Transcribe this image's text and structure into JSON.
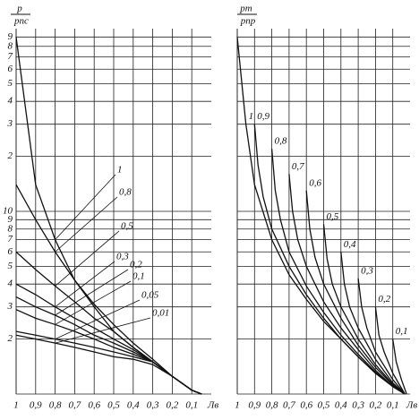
{
  "chart_data": [
    {
      "type": "line",
      "y_label": {
        "num": "p",
        "den": "pпс"
      },
      "x_label": "Лв",
      "xlim": [
        1,
        0
      ],
      "xticks": [
        1,
        {
          "value": 0.9,
          "label": "0,9"
        },
        {
          "value": 0.8,
          "label": "0,8"
        },
        {
          "value": 0.7,
          "label": "0,7"
        },
        {
          "value": 0.6,
          "label": "0,6"
        },
        {
          "value": 0.5,
          "label": "0,5"
        },
        {
          "value": 0.4,
          "label": "0,4"
        },
        {
          "value": 0.3,
          "label": "0,3"
        },
        {
          "value": 0.2,
          "label": "0,2"
        },
        {
          "value": 0.1,
          "label": "0,1"
        }
      ],
      "ylim": [
        1,
        100
      ],
      "log_y": true,
      "show_ytick_labels": true,
      "yticks": [
        2,
        3,
        4,
        5,
        6,
        7,
        8,
        9,
        10,
        {
          "value": 20,
          "label": "2"
        },
        {
          "value": 30,
          "label": "3"
        },
        {
          "value": 40,
          "label": "4"
        },
        {
          "value": 50,
          "label": "5"
        },
        {
          "value": 60,
          "label": "6"
        },
        {
          "value": 70,
          "label": "7"
        },
        {
          "value": 80,
          "label": "8"
        },
        {
          "value": 90,
          "label": "9"
        }
      ],
      "x": [
        1,
        0.9,
        0.8,
        0.7,
        0.6,
        0.5,
        0.4,
        0.3,
        0.2,
        0.1,
        0.05
      ],
      "color": "#111111",
      "series": [
        {
          "name": "1",
          "values": [
            90,
            14,
            7,
            4.2,
            3,
            2.2,
            1.8,
            1.5,
            1.25,
            1.05,
            1
          ]
        },
        {
          "name": "0,8",
          "values": [
            14,
            9,
            6,
            4.2,
            3.1,
            2.4,
            1.9,
            1.55,
            1.25,
            1.05,
            1
          ]
        },
        {
          "name": "0,5",
          "values": [
            6,
            4.8,
            3.9,
            3.2,
            2.6,
            2.2,
            1.8,
            1.5,
            1.25,
            1.05,
            1
          ]
        },
        {
          "name": "0,3",
          "values": [
            4,
            3.5,
            3,
            2.6,
            2.3,
            2,
            1.75,
            1.5,
            1.25,
            1.05,
            1
          ]
        },
        {
          "name": "0,2",
          "values": [
            3.4,
            3,
            2.7,
            2.4,
            2.1,
            1.9,
            1.7,
            1.5,
            1.25,
            1.05,
            1
          ]
        },
        {
          "name": "0,1",
          "values": [
            2.9,
            2.6,
            2.4,
            2.2,
            2,
            1.8,
            1.65,
            1.5,
            1.25,
            1.05,
            1
          ]
        },
        {
          "name": "0,05",
          "values": [
            2.2,
            2.1,
            2,
            1.9,
            1.8,
            1.7,
            1.6,
            1.5,
            1.25,
            1.05,
            1
          ]
        },
        {
          "name": "0,01",
          "values": [
            2.1,
            2,
            1.9,
            1.8,
            1.7,
            1.6,
            1.55,
            1.45,
            1.25,
            1.05,
            1
          ]
        }
      ]
    },
    {
      "type": "line",
      "y_label": {
        "num": "pm",
        "den": "pпр"
      },
      "x_label": "Лв",
      "xlim": [
        1,
        0
      ],
      "xticks": [
        1,
        {
          "value": 0.9,
          "label": "0,9"
        },
        {
          "value": 0.8,
          "label": "0,8"
        },
        {
          "value": 0.7,
          "label": "0,7"
        },
        {
          "value": 0.6,
          "label": "0,6"
        },
        {
          "value": 0.5,
          "label": "0,5"
        },
        {
          "value": 0.4,
          "label": "0,4"
        },
        {
          "value": 0.3,
          "label": "0,3"
        },
        {
          "value": 0.2,
          "label": "0,2"
        },
        {
          "value": 0.1,
          "label": "0,1"
        }
      ],
      "ylim": [
        1,
        100
      ],
      "log_y": true,
      "show_ytick_labels": false,
      "yticks": [
        2,
        3,
        4,
        5,
        6,
        7,
        8,
        9,
        10,
        20,
        30,
        40,
        50,
        60,
        70,
        80,
        90
      ],
      "color": "#111111",
      "series": [
        {
          "name": "1",
          "x": [
            1,
            0.95,
            0.9,
            0.8,
            0.7,
            0.6,
            0.5,
            0.4,
            0.3,
            0.2,
            0.1,
            0.03
          ],
          "values": [
            90,
            30,
            14,
            7,
            4.5,
            3.3,
            2.5,
            2,
            1.6,
            1.3,
            1.1,
            1
          ]
        },
        {
          "name": "0,9",
          "x": [
            0.9,
            0.88,
            0.85,
            0.8,
            0.7,
            0.6,
            0.5,
            0.4,
            0.3,
            0.2,
            0.1,
            0.03
          ],
          "values": [
            30,
            18,
            12,
            8,
            5,
            3.5,
            2.6,
            2,
            1.6,
            1.3,
            1.1,
            1
          ]
        },
        {
          "name": "0,8",
          "x": [
            0.8,
            0.78,
            0.75,
            0.7,
            0.6,
            0.5,
            0.4,
            0.3,
            0.2,
            0.1,
            0.03
          ],
          "values": [
            22,
            13,
            9,
            6,
            3.9,
            2.8,
            2.1,
            1.65,
            1.32,
            1.1,
            1
          ]
        },
        {
          "name": "0,7",
          "x": [
            0.7,
            0.68,
            0.65,
            0.6,
            0.5,
            0.4,
            0.3,
            0.2,
            0.1,
            0.03
          ],
          "values": [
            16,
            10,
            7,
            5,
            3.2,
            2.3,
            1.75,
            1.35,
            1.1,
            1
          ]
        },
        {
          "name": "0,6",
          "x": [
            0.6,
            0.58,
            0.55,
            0.5,
            0.4,
            0.3,
            0.2,
            0.1,
            0.03
          ],
          "values": [
            13,
            8,
            5.6,
            4,
            2.6,
            1.85,
            1.4,
            1.12,
            1
          ]
        },
        {
          "name": "0,5",
          "x": [
            0.5,
            0.48,
            0.45,
            0.4,
            0.3,
            0.2,
            0.1,
            0.03
          ],
          "values": [
            8.5,
            5.5,
            4,
            3,
            2,
            1.45,
            1.13,
            1
          ]
        },
        {
          "name": "0,4",
          "x": [
            0.4,
            0.38,
            0.35,
            0.3,
            0.2,
            0.1,
            0.03
          ],
          "values": [
            6,
            4,
            3,
            2.3,
            1.55,
            1.15,
            1
          ]
        },
        {
          "name": "0,3",
          "x": [
            0.3,
            0.28,
            0.25,
            0.2,
            0.1,
            0.03
          ],
          "values": [
            4.3,
            3,
            2.3,
            1.7,
            1.2,
            1
          ]
        },
        {
          "name": "0,2",
          "x": [
            0.2,
            0.18,
            0.15,
            0.1,
            0.03
          ],
          "values": [
            3,
            2.1,
            1.7,
            1.3,
            1
          ]
        },
        {
          "name": "0,1",
          "x": [
            0.1,
            0.08,
            0.05,
            0.02
          ],
          "values": [
            2,
            1.5,
            1.2,
            1
          ]
        }
      ]
    }
  ]
}
